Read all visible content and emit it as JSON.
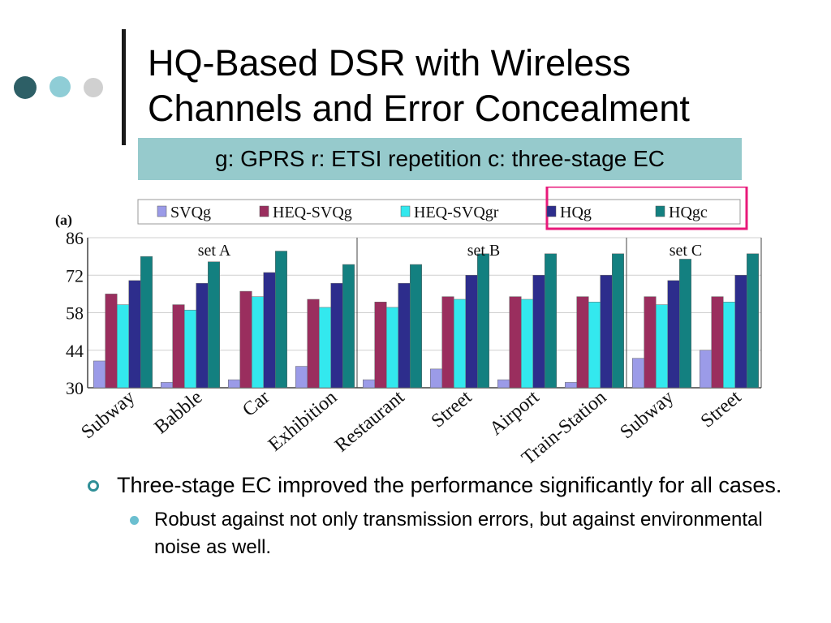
{
  "slide": {
    "title_line1": "HQ-Based DSR with Wireless",
    "title_line2": "Channels and Error Concealment",
    "subtitle": "g: GPRS r: ETSI repetition c: three-stage EC",
    "bullet1": "Three-stage EC improved the performance significantly for all cases.",
    "bullet1_sub1": "Robust against not only transmission errors, but against environmental noise as well.",
    "colors": {
      "dot1": "#2d5f66",
      "dot2": "#8fcdd6",
      "dot3": "#d0d0d0",
      "subtitle_bg": "#96cacc",
      "legend_border": "#e8197a"
    }
  },
  "chart_data": {
    "type": "bar",
    "panel_label": "(a)",
    "series": [
      {
        "name": "SVQg",
        "color": "#9b9be8",
        "values": [
          40,
          32,
          33,
          38,
          33,
          37,
          33,
          32,
          41,
          44
        ]
      },
      {
        "name": "HEQ-SVQg",
        "color": "#9a2e5e",
        "values": [
          65,
          61,
          66,
          63,
          62,
          64,
          64,
          64,
          64,
          64
        ]
      },
      {
        "name": "HEQ-SVQgr",
        "color": "#33e8ee",
        "values": [
          61,
          59,
          64,
          60,
          60,
          63,
          63,
          62,
          61,
          62
        ]
      },
      {
        "name": "HQg",
        "color": "#2d2d8c",
        "values": [
          70,
          69,
          73,
          69,
          69,
          72,
          72,
          72,
          70,
          72
        ]
      },
      {
        "name": "HQgc",
        "color": "#138080",
        "values": [
          79,
          77,
          81,
          76,
          76,
          80,
          80,
          80,
          78,
          80
        ]
      }
    ],
    "categories": [
      "Subway",
      "Babble",
      "Car",
      "Exhibition",
      "Restaurant",
      "Street",
      "Airport",
      "Train-Station",
      "Subway",
      "Street"
    ],
    "groups": [
      {
        "label": "set A",
        "count": 4
      },
      {
        "label": "set B",
        "count": 4
      },
      {
        "label": "set C",
        "count": 2
      }
    ],
    "y_ticks": [
      "30",
      "44",
      "58",
      "72",
      "86"
    ],
    "ylim": [
      30,
      86
    ]
  }
}
